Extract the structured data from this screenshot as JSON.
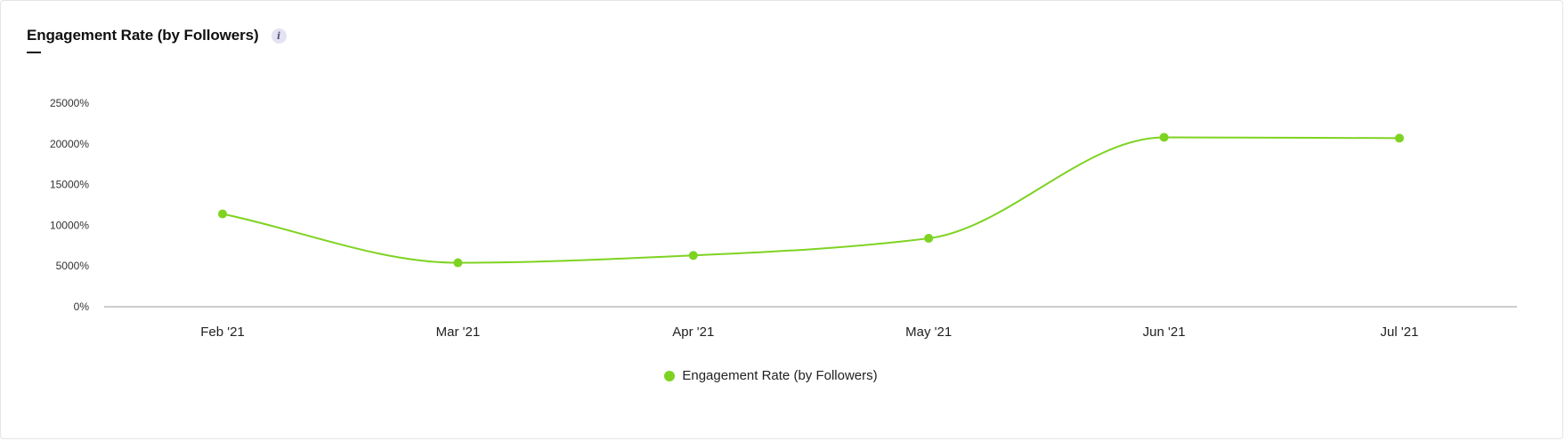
{
  "header": {
    "title": "Engagement Rate (by Followers)",
    "info_icon_text": "i"
  },
  "colors": {
    "series": "#7ed321",
    "axis": "#bbbbbb",
    "info_bg": "#e3e3f1"
  },
  "chart_data": {
    "type": "line",
    "title": "Engagement Rate (by Followers)",
    "xlabel": "",
    "ylabel": "",
    "categories": [
      "Feb '21",
      "Mar '21",
      "Apr '21",
      "May '21",
      "Jun '21",
      "Jul '21"
    ],
    "series": [
      {
        "name": "Engagement Rate (by Followers)",
        "values": [
          11400,
          5400,
          6300,
          8400,
          20800,
          20700
        ]
      }
    ],
    "y_ticks": [
      0,
      5000,
      10000,
      15000,
      20000,
      25000
    ],
    "y_tick_labels": [
      "0%",
      "5000%",
      "10000%",
      "15000%",
      "20000%",
      "25000%"
    ],
    "ylim": [
      0,
      25000
    ],
    "grid": false,
    "legend_position": "bottom-center",
    "smooth": true
  }
}
